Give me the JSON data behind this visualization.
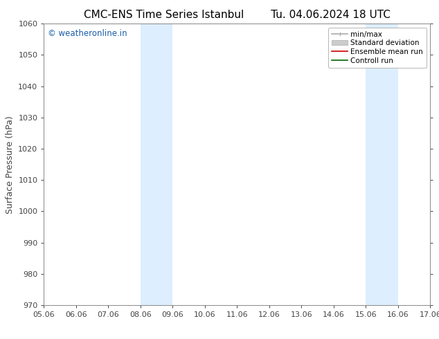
{
  "title_left": "CMC-ENS Time Series Istanbul",
  "title_right": "Tu. 04.06.2024 18 UTC",
  "ylabel": "Surface Pressure (hPa)",
  "ylim": [
    970,
    1060
  ],
  "yticks": [
    970,
    980,
    990,
    1000,
    1010,
    1020,
    1030,
    1040,
    1050,
    1060
  ],
  "xtick_labels": [
    "05.06",
    "06.06",
    "07.06",
    "08.06",
    "09.06",
    "10.06",
    "11.06",
    "12.06",
    "13.06",
    "14.06",
    "15.06",
    "16.06",
    "17.06"
  ],
  "xtick_positions": [
    0,
    1,
    2,
    3,
    4,
    5,
    6,
    7,
    8,
    9,
    10,
    11,
    12
  ],
  "shaded_regions": [
    {
      "xstart": 3,
      "xend": 4
    },
    {
      "xstart": 10,
      "xend": 11
    }
  ],
  "shade_color": "#ddeeff",
  "background_color": "#ffffff",
  "watermark": "© weatheronline.in",
  "watermark_color": "#1a5faa",
  "legend_entries": [
    {
      "label": "min/max",
      "color": "#aaaaaa",
      "lw": 1.2
    },
    {
      "label": "Standard deviation",
      "color": "#cccccc",
      "lw": 7
    },
    {
      "label": "Ensemble mean run",
      "color": "#cc0000",
      "lw": 1.2
    },
    {
      "label": "Controll run",
      "color": "#006600",
      "lw": 1.2
    }
  ],
  "spine_color": "#888888",
  "tick_color": "#444444",
  "title_fontsize": 11,
  "axis_label_fontsize": 9,
  "tick_fontsize": 8,
  "watermark_fontsize": 8.5,
  "legend_fontsize": 7.5
}
